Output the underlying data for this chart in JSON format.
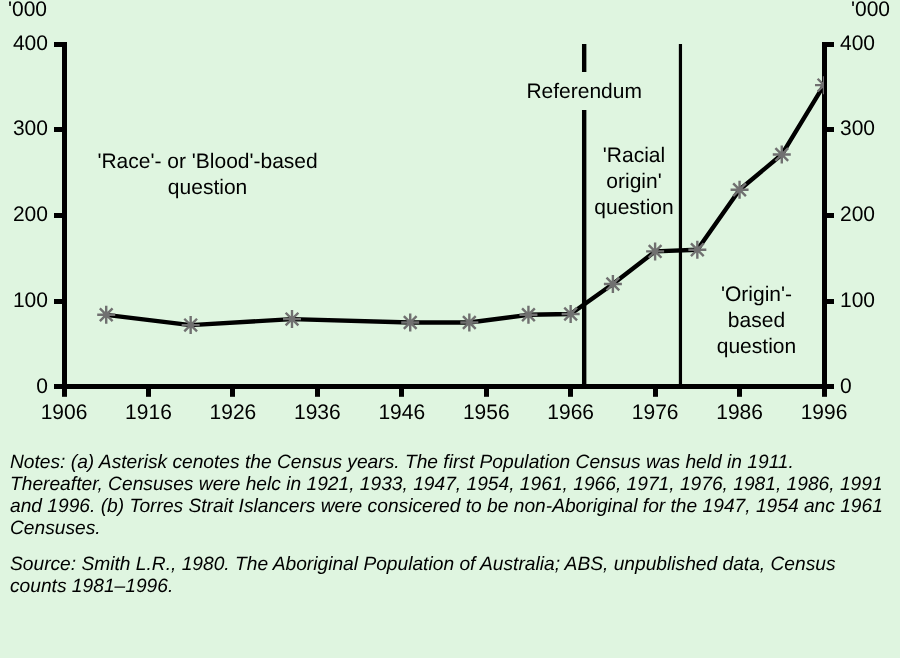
{
  "chart_data": {
    "type": "line",
    "ylabel": "'000",
    "y2label": "'000",
    "x": [
      1911,
      1921,
      1933,
      1947,
      1954,
      1961,
      1966,
      1971,
      1976,
      1981,
      1986,
      1991,
      1996
    ],
    "series": [
      {
        "color": "#000000",
        "values": [
          84,
          72,
          79,
          75,
          75,
          84,
          85,
          120,
          158,
          160,
          230,
          271,
          352
        ]
      }
    ],
    "xlim": [
      1906,
      1996
    ],
    "xticks": [
      1906,
      1916,
      1926,
      1936,
      1946,
      1956,
      1966,
      1976,
      1986,
      1996
    ],
    "ylim": [
      0,
      400
    ],
    "yticks": [
      0,
      100,
      200,
      300,
      400
    ],
    "y2lim": [
      0,
      400
    ],
    "y2ticks": [
      0,
      100,
      200,
      300,
      400
    ],
    "marker": "cross",
    "grid": false,
    "legend": false,
    "ref_lines": [
      {
        "axis": "x",
        "value": 1967.6,
        "label": "Referendum"
      },
      {
        "axis": "x",
        "value": 1979
      }
    ],
    "annotations": [
      "'Race'- or 'Blood'-based question",
      "'Racial origin' question",
      "'Origin'-based question",
      "Notes: (a) Asterisk cenotes the Census years. The first Population Census was held in 1911. Thereafter, Censuses were helc in 1921, 1933, 1947, 1954, 1961, 1966, 1971, 1976, 1981, 1986, 1991 and 1996. (b) Torres Strait Islancers were consicered to be non-Aboriginal for the 1947, 1954 anc 1961 Censuses.",
      "Source: Smith L.R., 1980. The Aboriginal Population of Australia; ABS, unpublished data, Census counts 1981–1996."
    ]
  }
}
